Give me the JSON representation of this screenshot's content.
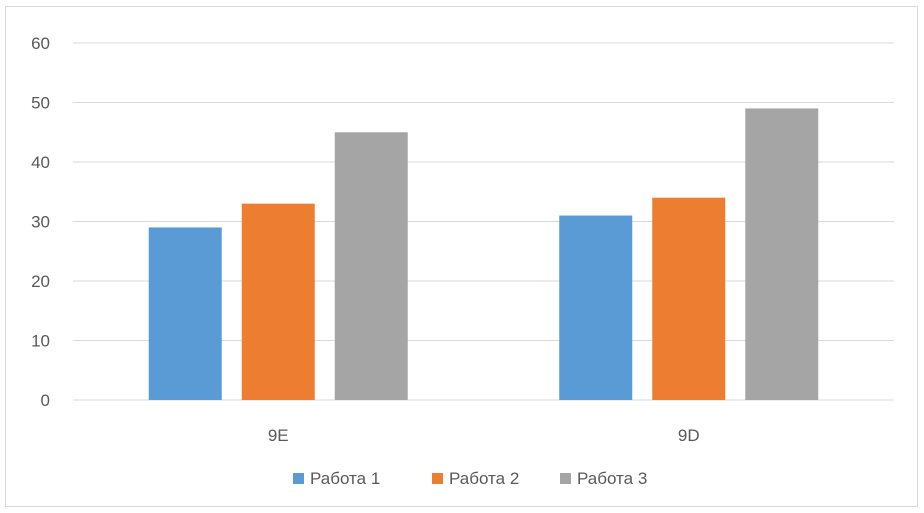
{
  "chart_data": {
    "type": "bar",
    "categories": [
      "9E",
      "9D"
    ],
    "series": [
      {
        "name": "Работа 1",
        "values": [
          29,
          31
        ],
        "color": "#5b9bd5"
      },
      {
        "name": "Работа 2",
        "values": [
          33,
          34
        ],
        "color": "#ed7d31"
      },
      {
        "name": "Работа 3",
        "values": [
          45,
          49
        ],
        "color": "#a5a5a5"
      }
    ],
    "title": "",
    "xlabel": "",
    "ylabel": "",
    "ylim": [
      0,
      60
    ],
    "yticks": [
      0,
      10,
      20,
      30,
      40,
      50,
      60
    ],
    "grid": true,
    "legend": "bottom",
    "gridline_color": "#d9d9d9",
    "label_color": "#595959"
  }
}
